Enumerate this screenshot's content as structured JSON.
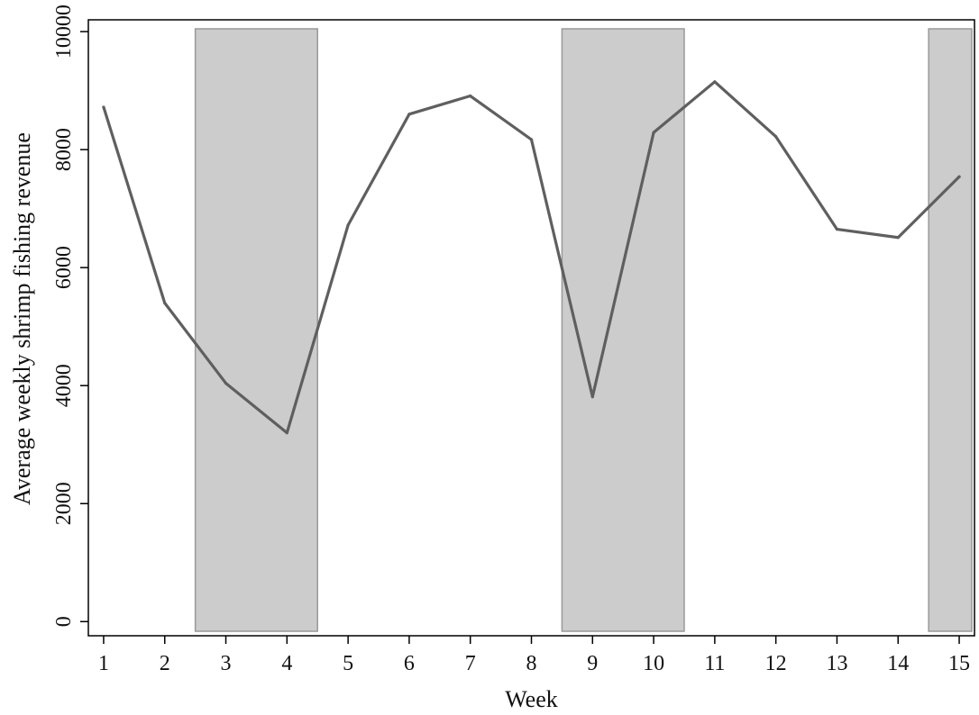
{
  "chart_data": {
    "type": "line",
    "xlabel": "Week",
    "ylabel": "Average weekly shrimp fishing revenue",
    "xlim": [
      0.75,
      15.25
    ],
    "ylim": [
      -240,
      10200
    ],
    "xticks": [
      1,
      2,
      3,
      4,
      5,
      6,
      7,
      8,
      9,
      10,
      11,
      12,
      13,
      14,
      15
    ],
    "yticks": [
      0,
      2000,
      4000,
      6000,
      8000,
      10000
    ],
    "grid": false,
    "legend": "none",
    "series": [
      {
        "x": [
          1,
          2,
          3,
          4,
          5,
          6,
          7,
          8,
          9,
          10,
          11,
          12,
          13,
          14,
          15
        ],
        "values": [
          8720,
          5400,
          4040,
          3200,
          6720,
          8600,
          8910,
          8170,
          3810,
          8290,
          9150,
          8220,
          6650,
          6510,
          7540
        ],
        "color": "#5f5f5f"
      }
    ],
    "shaded_bands": [
      {
        "x_start": 2.5,
        "x_end": 4.5,
        "color": "#cccccc"
      },
      {
        "x_start": 8.5,
        "x_end": 10.5,
        "color": "#cccccc"
      },
      {
        "x_start": 14.5,
        "x_end": 15.25,
        "color": "#cccccc"
      }
    ]
  }
}
